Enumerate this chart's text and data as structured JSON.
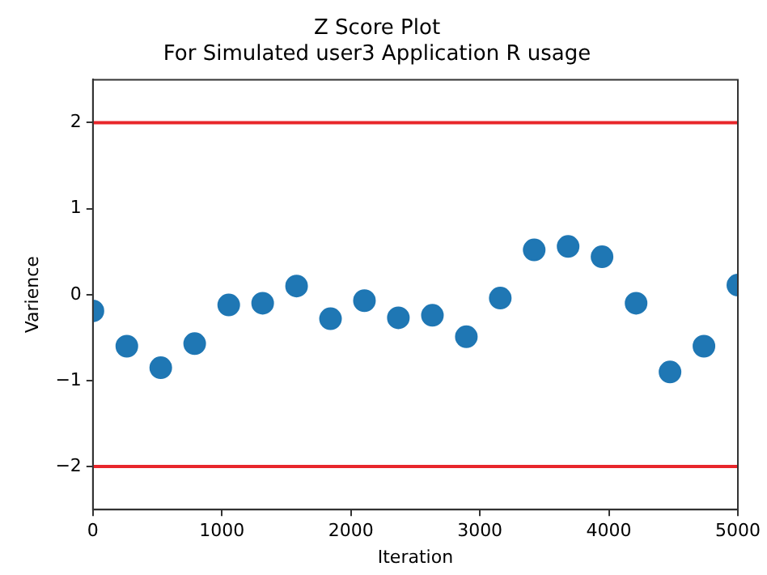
{
  "chart_data": {
    "type": "scatter",
    "title": "Z Score Plot",
    "subtitle": "For Simulated user3 Application R usage",
    "xlabel": "Iteration",
    "ylabel": "Varience",
    "x": [
      0,
      263,
      526,
      789,
      1053,
      1316,
      1579,
      1842,
      2105,
      2368,
      2632,
      2895,
      3158,
      3421,
      3684,
      3947,
      4211,
      4474,
      4737,
      5000
    ],
    "series": [
      {
        "color": "#1f77b4",
        "values": [
          -0.19,
          -0.6,
          -0.85,
          -0.57,
          -0.12,
          -0.1,
          0.1,
          -0.28,
          -0.07,
          -0.27,
          -0.24,
          -0.49,
          -0.04,
          0.52,
          0.56,
          0.44,
          -0.1,
          -0.9,
          -0.6,
          0.11
        ]
      }
    ],
    "xlim": [
      0,
      5000
    ],
    "xticks": [
      0,
      1000,
      2000,
      3000,
      4000,
      5000
    ],
    "ylim": [
      -2.5,
      2.5
    ],
    "yticks": [
      -2,
      -1,
      0,
      1,
      2
    ],
    "ref_lines": [
      {
        "axis": "y",
        "value": 2,
        "color": "#e8262b"
      },
      {
        "axis": "y",
        "value": -2,
        "color": "#e8262b"
      }
    ],
    "marker": "circle",
    "grid": false,
    "legend": false
  }
}
